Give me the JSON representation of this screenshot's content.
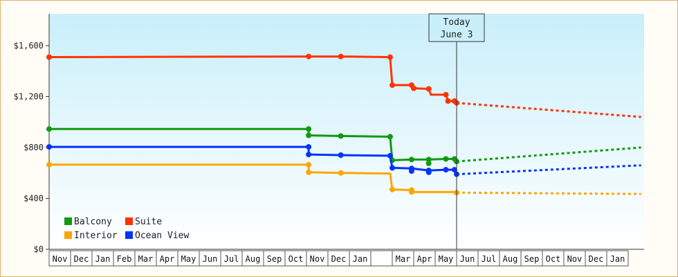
{
  "chart_data": {
    "type": "line",
    "title": "",
    "xlabel": "",
    "ylabel": "",
    "ylim": [
      0,
      1850
    ],
    "y_ticks": [
      0,
      400,
      800,
      1200,
      1600
    ],
    "y_tick_labels": [
      "$0",
      "$400",
      "$800",
      "$1,200",
      "$1,600"
    ],
    "x_axis": {
      "months": [
        "Nov",
        "Dec",
        "Jan",
        "Feb",
        "Mar",
        "Apr",
        "May",
        "Jun",
        "Jul",
        "Aug",
        "Sep",
        "Oct",
        "Nov",
        "Dec",
        "Jan",
        "",
        "Mar",
        "Apr",
        "May",
        "Jun",
        "Jul",
        "Aug",
        "Sep",
        "Oct",
        "Nov",
        "Dec",
        "Jan"
      ]
    },
    "today": {
      "line1": "Today",
      "line2": "June 3",
      "x": 19.0
    },
    "legend": [
      {
        "name": "Balcony",
        "color": "#119911"
      },
      {
        "name": "Suite",
        "color": "#ff3300"
      },
      {
        "name": "Interior",
        "color": "#ffa500"
      },
      {
        "name": "Ocean View",
        "color": "#0033ff"
      }
    ],
    "series": [
      {
        "name": "Suite",
        "color": "#ff3300",
        "history": [
          [
            0,
            1510
          ],
          [
            12.1,
            1515
          ],
          [
            13.6,
            1515
          ],
          [
            15.9,
            1510
          ],
          [
            16.0,
            1290
          ],
          [
            16.9,
            1290
          ],
          [
            17.0,
            1265
          ],
          [
            17.7,
            1260
          ],
          [
            17.8,
            1215
          ],
          [
            18.5,
            1215
          ],
          [
            18.6,
            1165
          ],
          [
            18.9,
            1165
          ],
          [
            19.0,
            1150
          ]
        ],
        "markers": [
          [
            0,
            1510
          ],
          [
            12.1,
            1515
          ],
          [
            13.6,
            1515
          ],
          [
            15.9,
            1510
          ],
          [
            16.0,
            1290
          ],
          [
            16.9,
            1290
          ],
          [
            17.0,
            1265
          ],
          [
            17.7,
            1260
          ],
          [
            18.5,
            1215
          ],
          [
            18.6,
            1165
          ],
          [
            18.9,
            1165
          ],
          [
            19.0,
            1150
          ]
        ],
        "forecast": [
          [
            19.0,
            1150
          ],
          [
            27.6,
            1040
          ]
        ]
      },
      {
        "name": "Balcony",
        "color": "#119911",
        "history": [
          [
            0,
            945
          ],
          [
            12.1,
            945
          ],
          [
            12.1,
            895
          ],
          [
            13.6,
            890
          ],
          [
            15.9,
            885
          ],
          [
            16.0,
            700
          ],
          [
            16.9,
            705
          ],
          [
            17.7,
            705
          ],
          [
            18.5,
            710
          ],
          [
            18.9,
            710
          ],
          [
            19.0,
            690
          ]
        ],
        "markers": [
          [
            0,
            945
          ],
          [
            12.1,
            945
          ],
          [
            12.1,
            895
          ],
          [
            13.6,
            890
          ],
          [
            15.9,
            885
          ],
          [
            16.0,
            700
          ],
          [
            16.9,
            705
          ],
          [
            17.7,
            705
          ],
          [
            17.7,
            675
          ],
          [
            18.5,
            710
          ],
          [
            18.9,
            710
          ],
          [
            19.0,
            690
          ]
        ],
        "forecast": [
          [
            19.0,
            690
          ],
          [
            27.6,
            800
          ]
        ]
      },
      {
        "name": "Ocean View",
        "color": "#0033ff",
        "history": [
          [
            0,
            805
          ],
          [
            12.1,
            805
          ],
          [
            12.1,
            745
          ],
          [
            13.6,
            740
          ],
          [
            15.9,
            735
          ],
          [
            16.0,
            640
          ],
          [
            16.9,
            635
          ],
          [
            17.7,
            620
          ],
          [
            18.5,
            625
          ],
          [
            18.9,
            625
          ],
          [
            19.0,
            590
          ]
        ],
        "markers": [
          [
            0,
            805
          ],
          [
            12.1,
            805
          ],
          [
            12.1,
            745
          ],
          [
            13.6,
            740
          ],
          [
            15.9,
            735
          ],
          [
            16.0,
            640
          ],
          [
            16.9,
            635
          ],
          [
            16.9,
            615
          ],
          [
            17.7,
            620
          ],
          [
            17.7,
            605
          ],
          [
            18.5,
            625
          ],
          [
            18.9,
            625
          ],
          [
            19.0,
            590
          ]
        ],
        "forecast": [
          [
            19.0,
            590
          ],
          [
            27.6,
            660
          ]
        ]
      },
      {
        "name": "Interior",
        "color": "#ffa500",
        "history": [
          [
            0,
            665
          ],
          [
            12.1,
            665
          ],
          [
            12.1,
            605
          ],
          [
            13.6,
            600
          ],
          [
            15.9,
            595
          ],
          [
            16.0,
            470
          ],
          [
            16.9,
            465
          ],
          [
            17.0,
            450
          ],
          [
            17.7,
            450
          ],
          [
            18.9,
            450
          ],
          [
            19.0,
            445
          ]
        ],
        "markers": [
          [
            0,
            665
          ],
          [
            12.1,
            665
          ],
          [
            12.1,
            605
          ],
          [
            13.6,
            600
          ],
          [
            16.0,
            470
          ],
          [
            16.9,
            465
          ],
          [
            16.9,
            450
          ],
          [
            19.0,
            445
          ]
        ],
        "forecast": [
          [
            19.0,
            445
          ],
          [
            27.6,
            435
          ]
        ]
      }
    ]
  }
}
